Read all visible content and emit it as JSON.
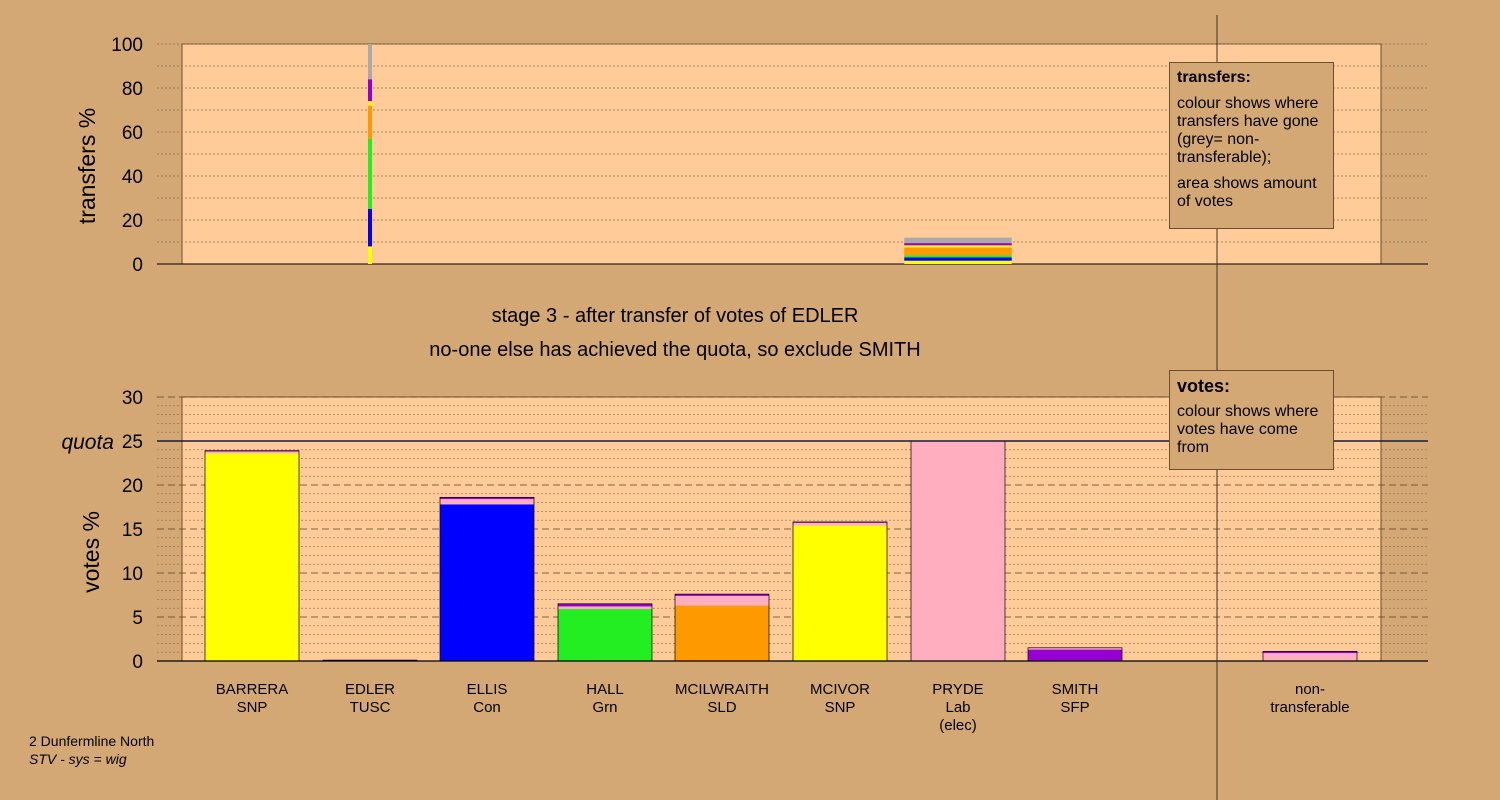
{
  "captions": {
    "stage": "stage 3 - after transfer of votes of EDLER",
    "action": "no-one else has achieved the quota, so exclude SMITH"
  },
  "transfers_legend": {
    "title": "transfers:",
    "line1": "colour shows where transfers have gone (grey= non-transferable);",
    "line2": "area shows amount of votes"
  },
  "votes_legend": {
    "title": "votes:",
    "line1": "colour shows where votes have come from"
  },
  "footer": {
    "constituency": "2 Dunfermline North",
    "system": "STV - sys = wig"
  },
  "colors": {
    "background": "#d4a874",
    "plot_bg": "#ffcc99",
    "SNP": "#ffff00",
    "Con": "#0000ff",
    "Grn": "#22ee22",
    "SLD": "#ff9900",
    "Lab": "#ffaec0",
    "SFP": "#9400d3",
    "TUSC": "#cc0000",
    "nontransferable": "#aaaaaa"
  },
  "chart_data": [
    {
      "type": "bar",
      "ylabel": "transfers %",
      "ylim": [
        0,
        100
      ],
      "yticks": [
        0,
        20,
        40,
        60,
        80,
        100
      ],
      "grid": true,
      "bars": [
        {
          "category": "EDLER",
          "width_votes": 0.3,
          "segments": [
            {
              "party": "SNP",
              "from": 0,
              "to": 8
            },
            {
              "party": "Con",
              "from": 8,
              "to": 25
            },
            {
              "party": "Grn",
              "from": 25,
              "to": 57
            },
            {
              "party": "SLD",
              "from": 57,
              "to": 72
            },
            {
              "party": "SNP",
              "from": 72,
              "to": 74
            },
            {
              "party": "SFP",
              "from": 74,
              "to": 84
            },
            {
              "party": "nontransferable",
              "from": 84,
              "to": 100
            }
          ]
        },
        {
          "category": "PRYDE",
          "width_votes": 25,
          "segments": [
            {
              "party": "SNP",
              "from": 0,
              "to": 1.5
            },
            {
              "party": "Con",
              "from": 1.5,
              "to": 3
            },
            {
              "party": "Grn",
              "from": 3,
              "to": 4
            },
            {
              "party": "SLD",
              "from": 4,
              "to": 7.5
            },
            {
              "party": "SNP",
              "from": 7.5,
              "to": 8.5
            },
            {
              "party": "SFP",
              "from": 8.5,
              "to": 9.5
            },
            {
              "party": "nontransferable",
              "from": 9.5,
              "to": 12
            }
          ]
        }
      ]
    },
    {
      "type": "bar",
      "ylabel": "votes %",
      "ylim": [
        0,
        30
      ],
      "yticks": [
        0,
        5,
        10,
        15,
        20,
        25,
        30
      ],
      "quota": 25,
      "quota_label": "quota",
      "grid": true,
      "categories": [
        {
          "name": "BARRERA",
          "party": "SNP",
          "segments": [
            {
              "party": "SNP",
              "value": 23.6
            },
            {
              "party": "Lab",
              "value": 0.2
            },
            {
              "party": "SFP",
              "value": 0.1
            }
          ]
        },
        {
          "name": "EDLER",
          "party": "TUSC",
          "segments": [
            {
              "party": "TUSC",
              "value": 0.1
            }
          ]
        },
        {
          "name": "ELLIS",
          "party": "Con",
          "segments": [
            {
              "party": "Con",
              "value": 17.8
            },
            {
              "party": "Lab",
              "value": 0.6
            },
            {
              "party": "SFP",
              "value": 0.2
            }
          ]
        },
        {
          "name": "HALL",
          "party": "Grn",
          "segments": [
            {
              "party": "Grn",
              "value": 5.9
            },
            {
              "party": "Lab",
              "value": 0.3
            },
            {
              "party": "SFP",
              "value": 0.3
            }
          ]
        },
        {
          "name": "MCILWRAITH",
          "party": "SLD",
          "segments": [
            {
              "party": "SLD",
              "value": 6.3
            },
            {
              "party": "Lab",
              "value": 1.1
            },
            {
              "party": "SFP",
              "value": 0.2
            }
          ]
        },
        {
          "name": "MCIVOR",
          "party": "SNP",
          "segments": [
            {
              "party": "SNP",
              "value": 15.4
            },
            {
              "party": "Lab",
              "value": 0.3
            },
            {
              "party": "SFP",
              "value": 0.1
            }
          ]
        },
        {
          "name": "PRYDE",
          "party": "Lab",
          "note": "(elec)",
          "segments": [
            {
              "party": "Lab",
              "value": 25.0
            }
          ]
        },
        {
          "name": "SMITH",
          "party": "SFP",
          "segments": [
            {
              "party": "SFP",
              "value": 1.3
            },
            {
              "party": "Lab",
              "value": 0.2
            }
          ]
        },
        {
          "name": "non-",
          "party": "transferable",
          "segments": [
            {
              "party": "Lab",
              "value": 0.9
            },
            {
              "party": "SFP",
              "value": 0.2
            }
          ]
        }
      ]
    }
  ]
}
